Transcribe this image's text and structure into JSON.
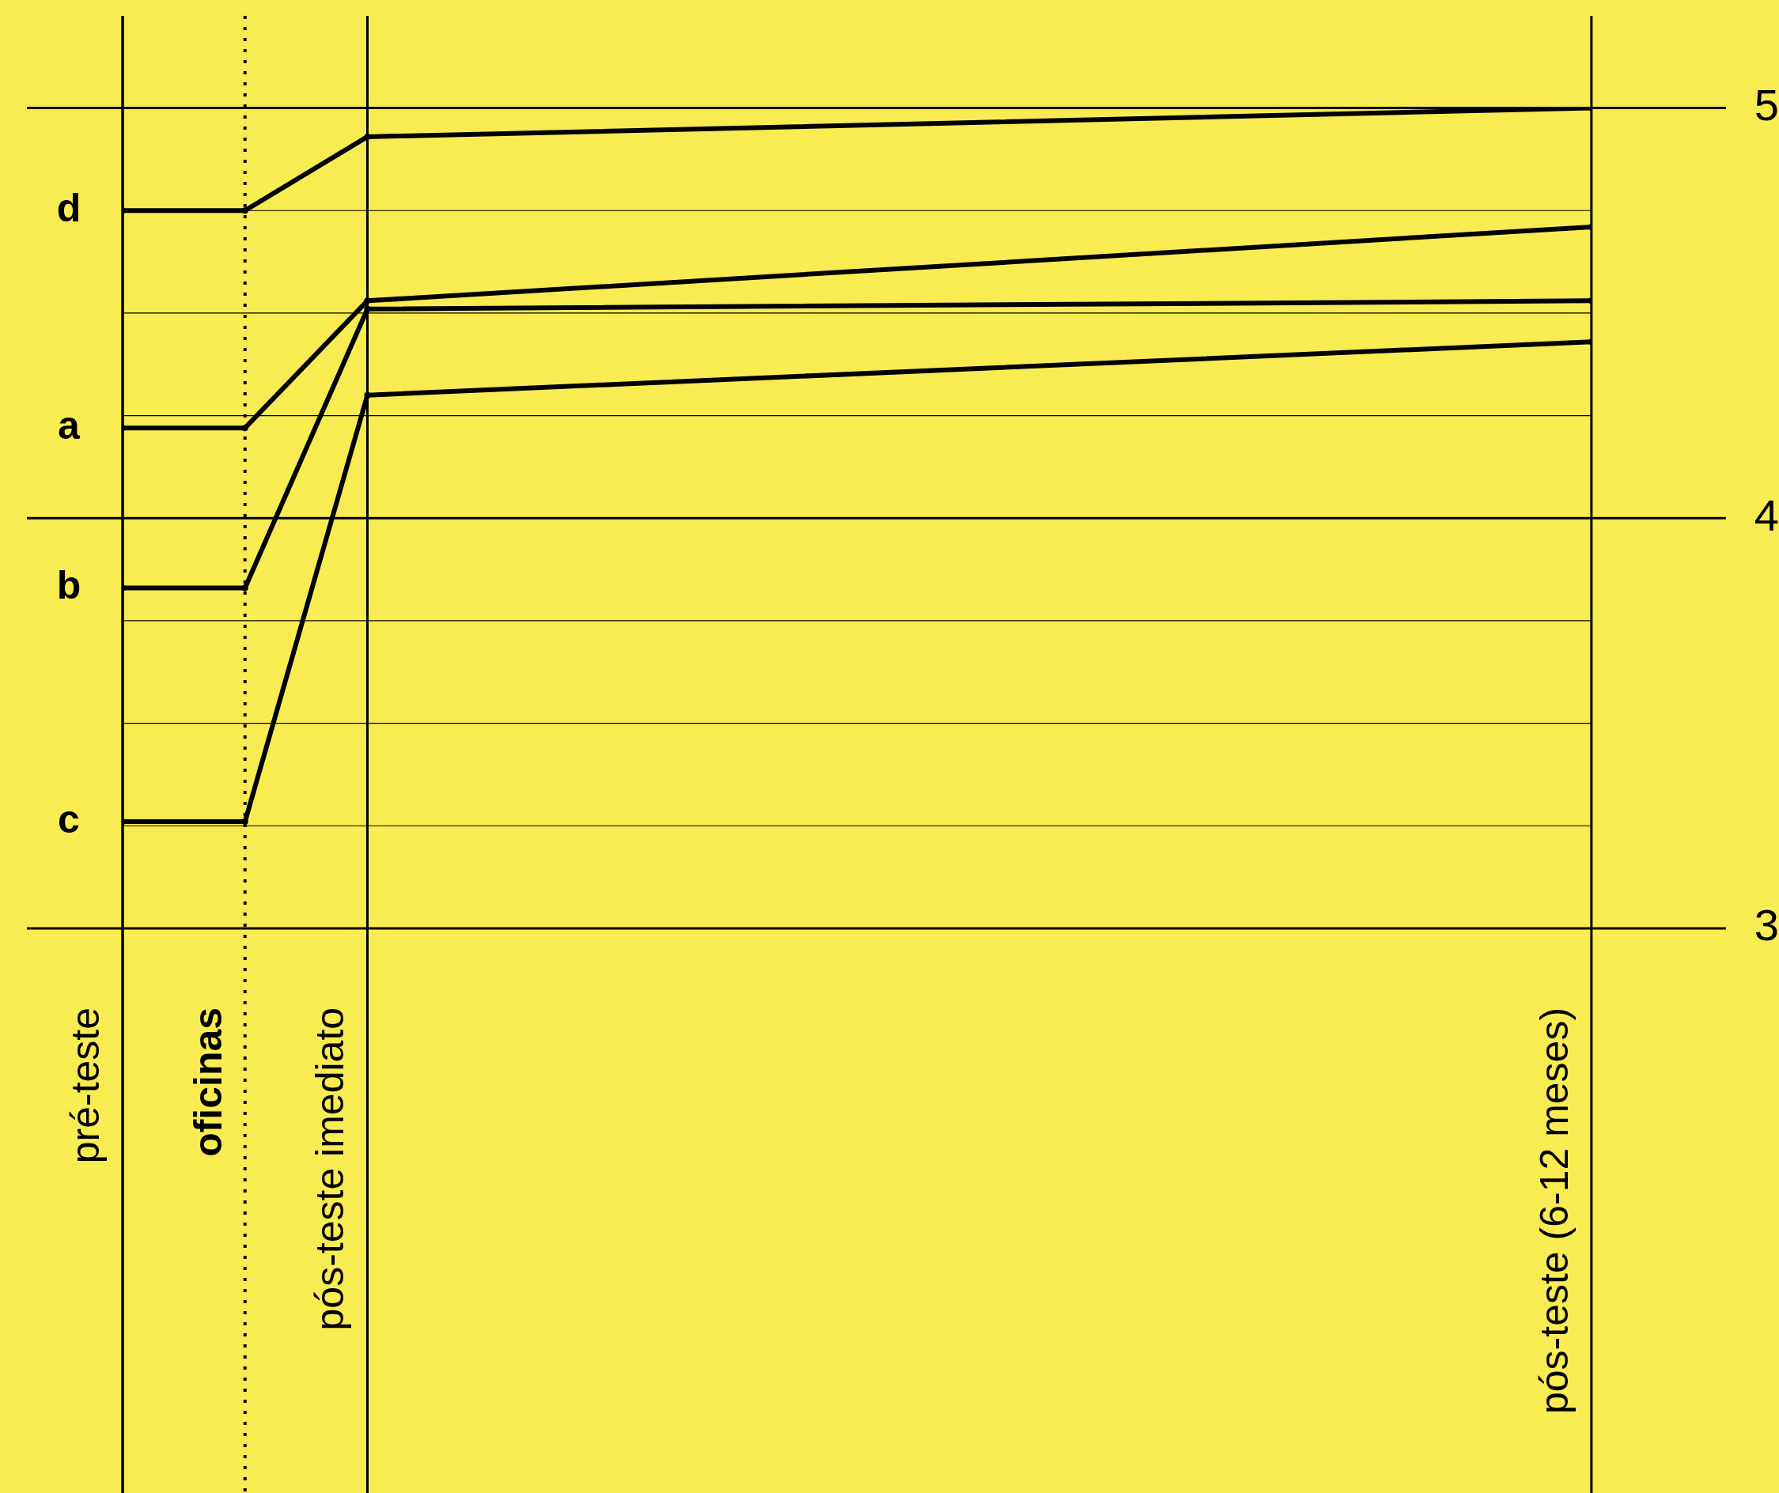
{
  "chart_data": {
    "type": "line",
    "categories": [
      "pré-teste",
      "oficinas",
      "pós-teste imediato",
      null,
      null,
      null,
      null,
      null,
      null,
      null,
      null,
      null,
      "pós-teste (6-12 meses)"
    ],
    "series": [
      {
        "name": "d",
        "color": "#000000",
        "x": [
          "pré-teste",
          "oficinas",
          "pós-teste imediato",
          "pós-teste (6-12 meses)"
        ],
        "values": [
          4.75,
          4.75,
          4.93,
          5.0
        ]
      },
      {
        "name": "a",
        "color": "#000000",
        "x": [
          "pré-teste",
          "oficinas",
          "pós-teste imediato",
          "pós-teste (6-12 meses)"
        ],
        "values": [
          4.22,
          4.22,
          4.53,
          4.71
        ]
      },
      {
        "name": "b",
        "color": "#000000",
        "x": [
          "pré-teste",
          "oficinas",
          "pós-teste imediato",
          "pós-teste (6-12 meses)"
        ],
        "values": [
          3.83,
          3.83,
          4.51,
          4.53
        ]
      },
      {
        "name": "c",
        "color": "#000000",
        "x": [
          "pré-teste",
          "oficinas",
          "pós-teste imediato",
          "pós-teste (6-12 meses)"
        ],
        "values": [
          3.26,
          3.26,
          4.3,
          4.43
        ]
      }
    ],
    "ylim": [
      3,
      5
    ],
    "yticks": [
      3,
      {
        "value": 3.25,
        "label": null
      },
      {
        "value": 3.5,
        "label": null
      },
      {
        "value": 3.75,
        "label": null
      },
      4,
      {
        "value": 4.25,
        "label": null
      },
      {
        "value": 4.5,
        "label": null
      },
      {
        "value": 4.75,
        "label": null
      },
      5
    ],
    "ref_lines": [
      {
        "axis": "x",
        "value": "oficinas",
        "line_style": "dotted",
        "color": "#000000"
      },
      {
        "axis": "y",
        "value": 4,
        "line_style": "solid",
        "color": "#000000"
      }
    ],
    "grid": true,
    "legend": false,
    "marker": "circle",
    "line_style": "solid"
  }
}
